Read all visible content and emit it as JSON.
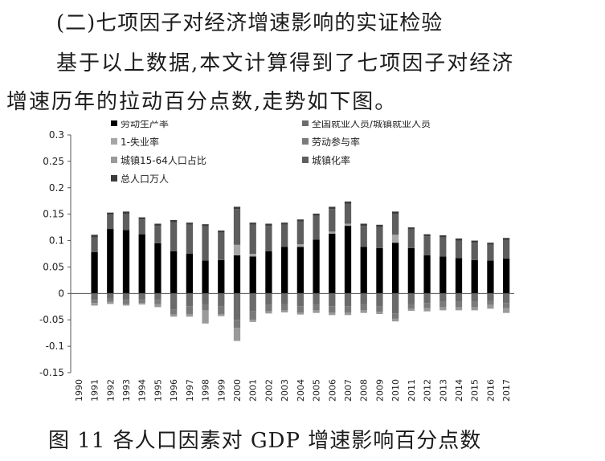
{
  "heading": "(二)七项因子对经济增速影响的实证检验",
  "paragraph": {
    "line1": "基于以上数据,本文计算得到了七项因子对经济",
    "line2": "增速历年的拉动百分点数,走势如下图。"
  },
  "caption": "图 11   各人口因素对 GDP 增速影响百分点数",
  "chart_data": {
    "type": "bar",
    "stacked": true,
    "title": "",
    "xlabel": "",
    "ylabel": "",
    "ylim": [
      -0.15,
      0.3
    ],
    "yticks": [
      -0.15,
      -0.1,
      -0.05,
      0,
      0.05,
      0.1,
      0.15,
      0.2,
      0.25,
      0.3
    ],
    "grid": false,
    "legend_position": "top",
    "categories": [
      "1990",
      "1991",
      "1992",
      "1993",
      "1994",
      "1995",
      "1996",
      "1997",
      "1998",
      "1999",
      "2000",
      "2001",
      "2002",
      "2003",
      "2004",
      "2005",
      "2006",
      "2007",
      "2008",
      "2009",
      "2010",
      "2011",
      "2012",
      "2013",
      "2014",
      "2015",
      "2016",
      "2017"
    ],
    "series": [
      {
        "name": "劳动生产率",
        "color": "#000000",
        "values": [
          0,
          0.078,
          0.122,
          0.12,
          0.112,
          0.095,
          0.08,
          0.075,
          0.062,
          0.063,
          0.072,
          0.07,
          0.08,
          0.088,
          0.088,
          0.102,
          0.113,
          0.128,
          0.088,
          0.086,
          0.096,
          0.086,
          0.072,
          0.07,
          0.067,
          0.063,
          0.062,
          0.066
        ]
      },
      {
        "name": "全国就业人员/城镇就业人员",
        "color": "#6b6b6b",
        "values": [
          0,
          -0.012,
          -0.01,
          -0.012,
          -0.012,
          -0.012,
          -0.03,
          -0.024,
          -0.02,
          -0.025,
          -0.05,
          -0.034,
          -0.022,
          -0.02,
          -0.024,
          -0.022,
          -0.024,
          -0.024,
          -0.02,
          -0.025,
          -0.038,
          -0.02,
          -0.018,
          -0.016,
          -0.016,
          -0.016,
          -0.014,
          -0.018
        ]
      },
      {
        "name": "1-失业率",
        "color": "#a6a6a6",
        "values": [
          0,
          0,
          0,
          0,
          0,
          0,
          0,
          0,
          0,
          0,
          0.02,
          0.005,
          0,
          0,
          0.005,
          0,
          0.004,
          0.004,
          0,
          0,
          0.015,
          0,
          0,
          0,
          0,
          0,
          0,
          0
        ]
      },
      {
        "name": "劳动参与率",
        "color": "#7a7a7a",
        "values": [
          0,
          -0.006,
          -0.006,
          -0.008,
          -0.006,
          -0.008,
          -0.01,
          -0.015,
          -0.012,
          -0.014,
          -0.015,
          -0.016,
          -0.012,
          -0.012,
          -0.012,
          -0.01,
          -0.012,
          -0.012,
          -0.012,
          -0.01,
          -0.01,
          -0.009,
          -0.01,
          -0.01,
          -0.01,
          -0.01,
          -0.008,
          -0.01
        ]
      },
      {
        "name": "城镇15-64人口占比",
        "color": "#9a9a9a",
        "values": [
          0,
          -0.005,
          -0.004,
          -0.003,
          -0.003,
          -0.006,
          -0.004,
          -0.005,
          -0.025,
          -0.004,
          -0.025,
          -0.004,
          -0.004,
          -0.004,
          -0.004,
          -0.005,
          -0.005,
          -0.005,
          -0.005,
          -0.004,
          -0.005,
          -0.004,
          -0.006,
          -0.006,
          -0.006,
          -0.006,
          -0.007,
          -0.009
        ]
      },
      {
        "name": "城镇化率",
        "color": "#5e5e5e",
        "values": [
          0,
          0.028,
          0.027,
          0.031,
          0.028,
          0.033,
          0.055,
          0.055,
          0.065,
          0.052,
          0.068,
          0.055,
          0.048,
          0.042,
          0.043,
          0.045,
          0.043,
          0.038,
          0.04,
          0.04,
          0.04,
          0.035,
          0.036,
          0.036,
          0.033,
          0.033,
          0.03,
          0.035
        ]
      },
      {
        "name": "总人口万人",
        "color": "#3c3c3c",
        "values": [
          0,
          0.005,
          0.004,
          0.004,
          0.004,
          0.004,
          0.004,
          0.004,
          0.004,
          0.004,
          0.004,
          0.004,
          0.004,
          0.004,
          0.004,
          0.004,
          0.004,
          0.004,
          0.004,
          0.004,
          0.004,
          0.004,
          0.004,
          0.004,
          0.004,
          0.004,
          0.004,
          0.004
        ]
      }
    ]
  }
}
